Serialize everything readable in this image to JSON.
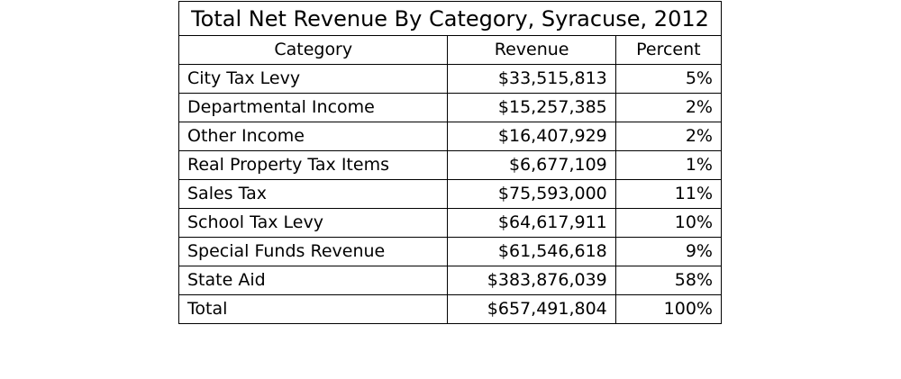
{
  "table": {
    "title": "Total Net Revenue By Category, Syracuse, 2012",
    "columns": [
      "Category",
      "Revenue",
      "Percent"
    ],
    "rows": [
      {
        "category": "City Tax Levy",
        "revenue": "$33,515,813",
        "percent": "5%"
      },
      {
        "category": "Departmental Income",
        "revenue": "$15,257,385",
        "percent": "2%"
      },
      {
        "category": "Other Income",
        "revenue": "$16,407,929",
        "percent": "2%"
      },
      {
        "category": "Real Property Tax Items",
        "revenue": "$6,677,109",
        "percent": "1%"
      },
      {
        "category": "Sales Tax",
        "revenue": "$75,593,000",
        "percent": "11%"
      },
      {
        "category": "School Tax Levy",
        "revenue": "$64,617,911",
        "percent": "10%"
      },
      {
        "category": "Special Funds Revenue",
        "revenue": "$61,546,618",
        "percent": "9%"
      },
      {
        "category": "State Aid",
        "revenue": "$383,876,039",
        "percent": "58%"
      },
      {
        "category": "Total",
        "revenue": "$657,491,804",
        "percent": "100%"
      }
    ]
  }
}
